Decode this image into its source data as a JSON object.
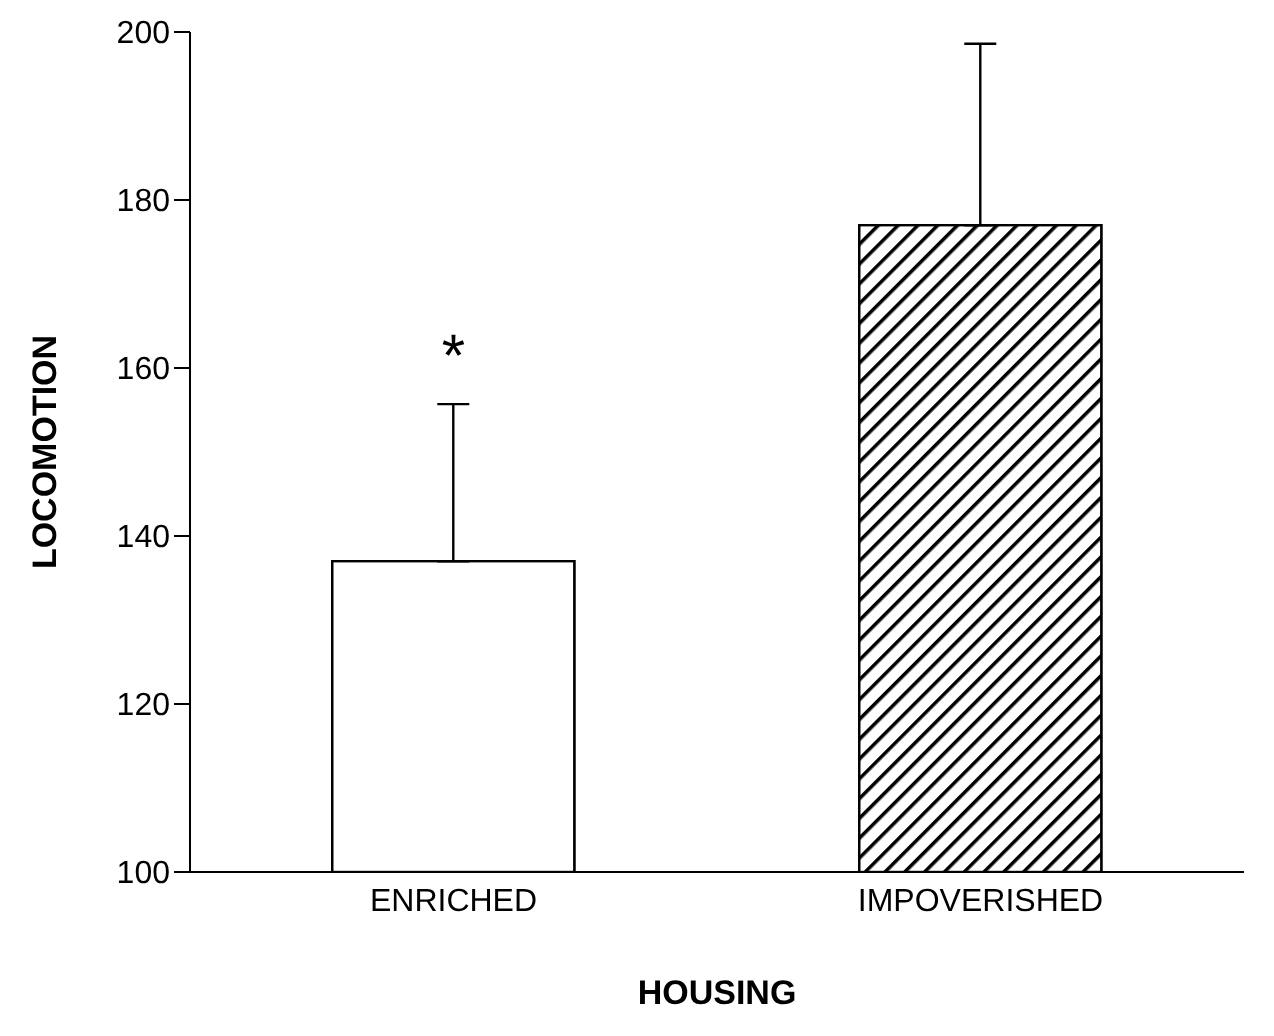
{
  "chart_data": {
    "type": "bar",
    "xlabel": "HOUSING",
    "ylabel": "LOCOMOTION",
    "categories": [
      "ENRICHED",
      "IMPOVERISHED"
    ],
    "values": [
      137,
      177
    ],
    "errors": [
      [
        137,
        155.7
      ],
      [
        177,
        198.6
      ]
    ],
    "colors": [
      "#ffffff",
      "#7f7f7f"
    ],
    "ylim": [
      100,
      200
    ],
    "yticks": [
      100,
      120,
      140,
      160,
      180,
      200
    ],
    "annotations": [
      "*"
    ]
  }
}
